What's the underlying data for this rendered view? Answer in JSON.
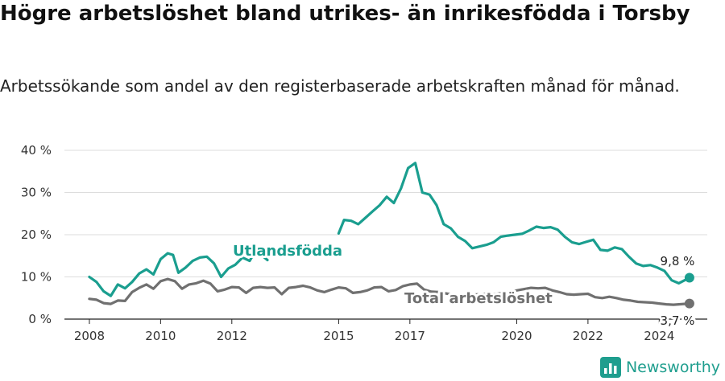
{
  "header": {
    "title": "Högre arbetslöshet bland utrikes- än inrikesfödda i Torsby",
    "subtitle": "Arbetssökande som andel av den registerbaserade arbetskraften månad för månad."
  },
  "brand": {
    "name": "Newsworthy",
    "color": "#1f9e8e"
  },
  "chart_data": {
    "type": "line",
    "title": "Högre arbetslöshet bland utrikes- än inrikesfödda i Torsby",
    "subtitle": "Arbetssökande som andel av den registerbaserade arbetskraften månad för månad.",
    "ylim": [
      0,
      40
    ],
    "y_ticks": [
      "0 %",
      "10 %",
      "20 %",
      "30 %",
      "40 %"
    ],
    "x_ticks": [
      "2008",
      "2010",
      "2012",
      "2015",
      "2017",
      "2020",
      "2022",
      "2024"
    ],
    "grid": true,
    "series": [
      {
        "name": "Utlandsfödda",
        "color": "#1a9e8f",
        "end_label": "9,8 %",
        "points": [
          [
            2008.0,
            10.0
          ],
          [
            2008.2,
            8.8
          ],
          [
            2008.4,
            6.6
          ],
          [
            2008.6,
            5.5
          ],
          [
            2008.8,
            8.2
          ],
          [
            2009.0,
            7.3
          ],
          [
            2009.2,
            8.8
          ],
          [
            2009.4,
            10.8
          ],
          [
            2009.6,
            11.8
          ],
          [
            2009.8,
            10.6
          ],
          [
            2010.0,
            14.2
          ],
          [
            2010.2,
            15.6
          ],
          [
            2010.35,
            15.2
          ],
          [
            2010.5,
            11.0
          ],
          [
            2010.7,
            12.2
          ],
          [
            2010.9,
            13.8
          ],
          [
            2011.1,
            14.6
          ],
          [
            2011.3,
            14.8
          ],
          [
            2011.5,
            13.2
          ],
          [
            2011.7,
            10.0
          ],
          [
            2011.9,
            12.0
          ],
          [
            2012.1,
            12.9
          ],
          [
            2012.3,
            14.6
          ],
          [
            2012.5,
            13.8
          ],
          [
            2012.6,
            15.2
          ],
          [
            2012.8,
            15.4
          ],
          [
            2013.0,
            14.0
          ]
        ],
        "points_segment_2": [
          [
            2015.0,
            20.3
          ],
          [
            2015.15,
            23.5
          ],
          [
            2015.35,
            23.3
          ],
          [
            2015.55,
            22.5
          ],
          [
            2015.75,
            24.0
          ],
          [
            2015.95,
            25.5
          ],
          [
            2016.15,
            27.0
          ],
          [
            2016.35,
            29.0
          ],
          [
            2016.55,
            27.5
          ],
          [
            2016.75,
            31.0
          ],
          [
            2016.95,
            35.8
          ],
          [
            2017.15,
            37.0
          ],
          [
            2017.35,
            30.0
          ],
          [
            2017.55,
            29.5
          ],
          [
            2017.75,
            27.0
          ],
          [
            2017.95,
            22.5
          ],
          [
            2018.15,
            21.5
          ],
          [
            2018.35,
            19.5
          ],
          [
            2018.55,
            18.5
          ],
          [
            2018.75,
            16.8
          ],
          [
            2018.95,
            17.2
          ],
          [
            2019.15,
            17.6
          ],
          [
            2019.35,
            18.2
          ],
          [
            2019.55,
            19.5
          ],
          [
            2019.75,
            19.8
          ],
          [
            2019.95,
            20.0
          ],
          [
            2020.15,
            20.2
          ],
          [
            2020.35,
            21.0
          ],
          [
            2020.55,
            21.9
          ],
          [
            2020.75,
            21.6
          ],
          [
            2020.95,
            21.8
          ],
          [
            2021.15,
            21.2
          ],
          [
            2021.35,
            19.5
          ],
          [
            2021.55,
            18.2
          ],
          [
            2021.75,
            17.8
          ],
          [
            2021.95,
            18.3
          ],
          [
            2022.15,
            18.8
          ],
          [
            2022.35,
            16.4
          ],
          [
            2022.55,
            16.2
          ],
          [
            2022.75,
            17.0
          ],
          [
            2022.95,
            16.6
          ],
          [
            2023.15,
            14.8
          ],
          [
            2023.35,
            13.2
          ],
          [
            2023.55,
            12.6
          ],
          [
            2023.75,
            12.8
          ],
          [
            2023.95,
            12.2
          ],
          [
            2024.15,
            11.4
          ],
          [
            2024.35,
            9.2
          ],
          [
            2024.55,
            8.5
          ],
          [
            2024.85,
            9.8
          ]
        ]
      },
      {
        "name": "Total arbetslöshet",
        "color": "#707070",
        "end_label": "3,7 %",
        "points": [
          [
            2008.0,
            4.8
          ],
          [
            2008.2,
            4.6
          ],
          [
            2008.4,
            3.8
          ],
          [
            2008.6,
            3.6
          ],
          [
            2008.8,
            4.4
          ],
          [
            2009.0,
            4.3
          ],
          [
            2009.2,
            6.4
          ],
          [
            2009.4,
            7.4
          ],
          [
            2009.6,
            8.2
          ],
          [
            2009.8,
            7.2
          ],
          [
            2010.0,
            9.0
          ],
          [
            2010.2,
            9.5
          ],
          [
            2010.4,
            9.0
          ],
          [
            2010.6,
            7.2
          ],
          [
            2010.8,
            8.2
          ],
          [
            2011.0,
            8.5
          ],
          [
            2011.2,
            9.1
          ],
          [
            2011.4,
            8.4
          ],
          [
            2011.6,
            6.6
          ],
          [
            2011.8,
            7.0
          ],
          [
            2012.0,
            7.6
          ],
          [
            2012.2,
            7.5
          ],
          [
            2012.4,
            6.2
          ],
          [
            2012.6,
            7.4
          ],
          [
            2012.8,
            7.6
          ],
          [
            2013.0,
            7.4
          ],
          [
            2013.2,
            7.5
          ],
          [
            2013.4,
            5.9
          ],
          [
            2013.6,
            7.4
          ],
          [
            2013.8,
            7.6
          ],
          [
            2014.0,
            7.9
          ],
          [
            2014.2,
            7.5
          ],
          [
            2014.4,
            6.8
          ],
          [
            2014.6,
            6.4
          ],
          [
            2014.8,
            7.0
          ],
          [
            2015.0,
            7.5
          ],
          [
            2015.2,
            7.3
          ],
          [
            2015.4,
            6.2
          ],
          [
            2015.6,
            6.4
          ],
          [
            2015.8,
            6.8
          ],
          [
            2016.0,
            7.5
          ],
          [
            2016.2,
            7.6
          ],
          [
            2016.4,
            6.6
          ],
          [
            2016.6,
            6.9
          ],
          [
            2016.8,
            7.8
          ],
          [
            2017.0,
            8.2
          ],
          [
            2017.2,
            8.4
          ],
          [
            2017.4,
            7.0
          ],
          [
            2017.6,
            6.5
          ],
          [
            2017.8,
            6.4
          ],
          [
            2018.0,
            6.1
          ],
          [
            2018.2,
            5.8
          ],
          [
            2018.4,
            5.5
          ],
          [
            2018.6,
            5.6
          ],
          [
            2018.8,
            5.8
          ],
          [
            2019.0,
            5.9
          ],
          [
            2019.2,
            6.0
          ],
          [
            2019.4,
            5.9
          ],
          [
            2019.6,
            6.2
          ],
          [
            2019.8,
            6.6
          ],
          [
            2020.0,
            6.8
          ],
          [
            2020.2,
            7.1
          ],
          [
            2020.4,
            7.4
          ],
          [
            2020.6,
            7.3
          ],
          [
            2020.8,
            7.4
          ],
          [
            2021.0,
            6.8
          ],
          [
            2021.2,
            6.4
          ],
          [
            2021.4,
            5.9
          ],
          [
            2021.6,
            5.8
          ],
          [
            2021.8,
            5.9
          ],
          [
            2022.0,
            6.0
          ],
          [
            2022.2,
            5.2
          ],
          [
            2022.4,
            5.0
          ],
          [
            2022.6,
            5.3
          ],
          [
            2022.8,
            5.0
          ],
          [
            2023.0,
            4.6
          ],
          [
            2023.2,
            4.4
          ],
          [
            2023.4,
            4.1
          ],
          [
            2023.6,
            4.0
          ],
          [
            2023.8,
            3.9
          ],
          [
            2024.0,
            3.7
          ],
          [
            2024.2,
            3.5
          ],
          [
            2024.4,
            3.4
          ],
          [
            2024.85,
            3.7
          ]
        ]
      }
    ]
  }
}
